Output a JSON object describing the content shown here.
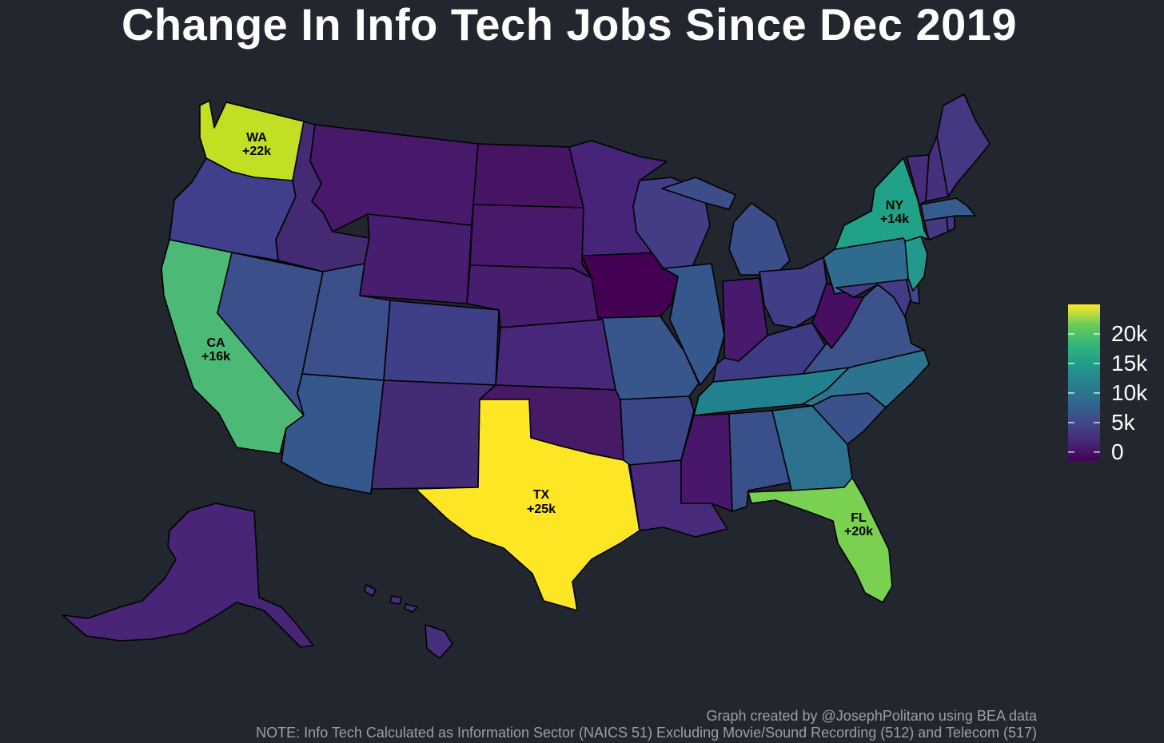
{
  "title": "Change In Info Tech Jobs Since Dec 2019",
  "credit": "Graph created by @JosephPolitano using BEA data",
  "note": "NOTE: Info Tech Calculated as Information Sector (NAICS 51) Excluding Movie/Sound Recording (512) and Telecom (517)",
  "chart_data": {
    "type": "choropleth",
    "legend": {
      "ticks": [
        "20k",
        "15k",
        "10k",
        "5k",
        "0"
      ],
      "tick_values": [
        20000,
        15000,
        10000,
        5000,
        0
      ],
      "range": [
        -1500,
        25000
      ],
      "colormap": "viridis",
      "placement": "right"
    },
    "states": [
      {
        "id": "WA",
        "value": 22000,
        "color": "#c2df23",
        "label": "WA",
        "value_label": "+22k"
      },
      {
        "id": "OR",
        "value": 2000,
        "color": "#3f3f8b"
      },
      {
        "id": "CA",
        "value": 16000,
        "color": "#4cb977",
        "label": "CA",
        "value_label": "+16k"
      },
      {
        "id": "NV",
        "value": 3500,
        "color": "#3b4f8a"
      },
      {
        "id": "ID",
        "value": 1000,
        "color": "#442a72"
      },
      {
        "id": "MT",
        "value": 200,
        "color": "#48196b"
      },
      {
        "id": "WY",
        "value": 300,
        "color": "#471d6f"
      },
      {
        "id": "UT",
        "value": 3500,
        "color": "#3c4f8a"
      },
      {
        "id": "AZ",
        "value": 5000,
        "color": "#34588c"
      },
      {
        "id": "CO",
        "value": 2500,
        "color": "#3e3f88"
      },
      {
        "id": "NM",
        "value": 1000,
        "color": "#452a74"
      },
      {
        "id": "ND",
        "value": 0,
        "color": "#471463"
      },
      {
        "id": "SD",
        "value": 200,
        "color": "#48186a"
      },
      {
        "id": "NE",
        "value": 300,
        "color": "#461e6d"
      },
      {
        "id": "KS",
        "value": 1000,
        "color": "#46277a"
      },
      {
        "id": "OK",
        "value": 0,
        "color": "#471a66"
      },
      {
        "id": "TX",
        "value": 25000,
        "color": "#fde725",
        "label": "TX",
        "value_label": "+25k"
      },
      {
        "id": "MN",
        "value": 500,
        "color": "#46247a"
      },
      {
        "id": "IA",
        "value": -1500,
        "color": "#440154"
      },
      {
        "id": "MO",
        "value": 4000,
        "color": "#39568c"
      },
      {
        "id": "AR",
        "value": 2500,
        "color": "#3d4589"
      },
      {
        "id": "LA",
        "value": 1000,
        "color": "#472a7a"
      },
      {
        "id": "WI",
        "value": 2000,
        "color": "#433d86"
      },
      {
        "id": "IL",
        "value": 4500,
        "color": "#35588c"
      },
      {
        "id": "MI",
        "value": 3500,
        "color": "#3b4e8a"
      },
      {
        "id": "IN",
        "value": 0,
        "color": "#481a6c"
      },
      {
        "id": "OH",
        "value": 2500,
        "color": "#3f3e87"
      },
      {
        "id": "KY",
        "value": 2000,
        "color": "#3e3b85"
      },
      {
        "id": "TN",
        "value": 10000,
        "color": "#22818e"
      },
      {
        "id": "MS",
        "value": 0,
        "color": "#48176a"
      },
      {
        "id": "AL",
        "value": 4000,
        "color": "#3a508b"
      },
      {
        "id": "GA",
        "value": 8500,
        "color": "#2c728e"
      },
      {
        "id": "FL",
        "value": 20000,
        "color": "#7ad151",
        "label": "FL",
        "value_label": "+20k"
      },
      {
        "id": "SC",
        "value": 4000,
        "color": "#3a518b"
      },
      {
        "id": "NC",
        "value": 9000,
        "color": "#2c738e"
      },
      {
        "id": "VA",
        "value": 4000,
        "color": "#3b528b"
      },
      {
        "id": "WV",
        "value": -500,
        "color": "#470e61"
      },
      {
        "id": "PA",
        "value": 8000,
        "color": "#2e6b8e"
      },
      {
        "id": "NY",
        "value": 14000,
        "color": "#1fa287",
        "label": "NY",
        "value_label": "+14k"
      },
      {
        "id": "NJ",
        "value": 11000,
        "color": "#23988d"
      },
      {
        "id": "MD",
        "value": 1500,
        "color": "#433c84"
      },
      {
        "id": "DE",
        "value": 2000,
        "color": "#3e4989"
      },
      {
        "id": "CT",
        "value": 1500,
        "color": "#443983"
      },
      {
        "id": "RI",
        "value": 1000,
        "color": "#463480"
      },
      {
        "id": "MA",
        "value": 4500,
        "color": "#365c8d"
      },
      {
        "id": "VT",
        "value": 500,
        "color": "#472c7a"
      },
      {
        "id": "NH",
        "value": 1000,
        "color": "#46307d"
      },
      {
        "id": "ME",
        "value": 1500,
        "color": "#453781"
      },
      {
        "id": "AK",
        "value": 500,
        "color": "#482576"
      },
      {
        "id": "HI",
        "value": 1000,
        "color": "#472e7c"
      }
    ]
  }
}
